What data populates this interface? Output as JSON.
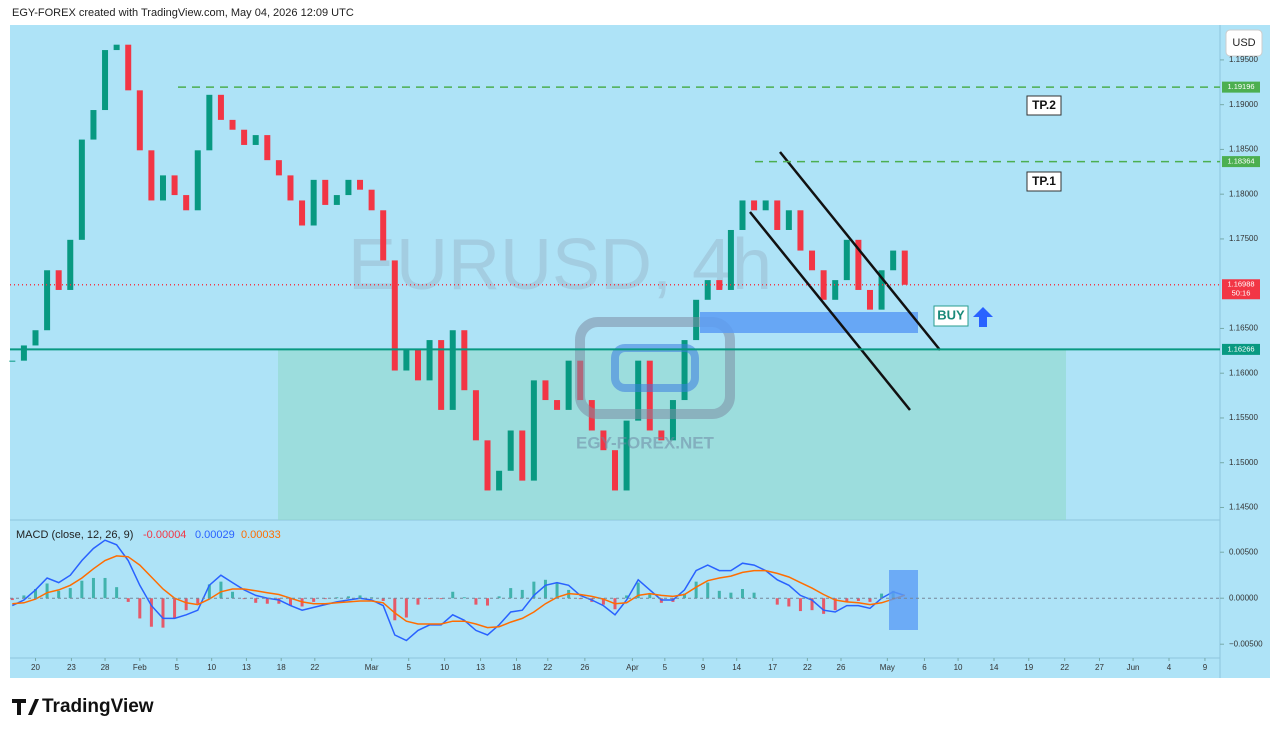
{
  "header": {
    "title": "EGY-FOREX created with TradingView.com, May 04, 2026 12:09 UTC",
    "currency": "USD",
    "watermark": "EURUSD, 4h",
    "logo": "EGY-FOREX.NET"
  },
  "annotations": {
    "tp2": "TP.2",
    "tp1": "TP.1",
    "buy": "BUY",
    "countdown": "50:16"
  },
  "footer": {
    "brand": "TradingView"
  },
  "chart_data": [
    {
      "type": "candlestick",
      "up_color": "#089981",
      "down_color": "#f23645",
      "x": [
        -2,
        -1,
        0,
        1,
        2,
        3,
        4,
        5,
        6,
        7,
        8,
        9,
        10,
        11,
        12,
        13,
        14,
        15,
        16,
        17,
        18,
        19,
        20,
        21,
        22,
        23,
        24,
        25,
        26,
        27,
        28,
        29,
        30,
        31,
        32,
        33,
        34,
        35,
        36,
        37,
        38,
        39,
        40,
        41,
        42,
        43,
        44,
        45,
        46,
        47,
        48,
        49,
        50,
        51,
        52,
        53,
        54,
        55,
        56,
        57,
        58,
        59,
        60,
        61,
        62,
        63,
        64,
        65,
        66,
        67,
        68,
        69,
        70,
        71,
        72,
        73,
        74,
        75
      ],
      "values": [
        1.1614,
        1.1631,
        1.1648,
        1.1715,
        1.1693,
        1.1749,
        1.1861,
        1.1894,
        1.1961,
        1.1967,
        1.1916,
        1.1849,
        1.1793,
        1.1821,
        1.1799,
        1.1782,
        1.1849,
        1.1911,
        1.1883,
        1.1872,
        1.1855,
        1.1866,
        1.1838,
        1.1821,
        1.1793,
        1.1765,
        1.1816,
        1.1788,
        1.1799,
        1.1816,
        1.1805,
        1.1782,
        1.1726,
        1.1603,
        1.1626,
        1.1592,
        1.1637,
        1.1559,
        1.1648,
        1.1581,
        1.1525,
        1.1469,
        1.1491,
        1.1536,
        1.148,
        1.1592,
        1.157,
        1.1559,
        1.1614,
        1.157,
        1.1536,
        1.1514,
        1.1469,
        1.1547,
        1.1614,
        1.1536,
        1.1525,
        1.157,
        1.1637,
        1.1682,
        1.1704,
        1.1693,
        1.176,
        1.1793,
        1.1782,
        1.1793,
        1.176,
        1.1782,
        1.1737,
        1.1715,
        1.1682,
        1.1704,
        1.1749,
        1.1693,
        1.1671,
        1.1715,
        1.1737,
        1.16988
      ],
      "xlim": [
        -2.2,
        102.2
      ],
      "ylim": [
        1.1436,
        1.1989
      ],
      "yticks": [
        {
          "value": 1.195,
          "label": "1.19500"
        },
        {
          "value": 1.19,
          "label": "1.19000"
        },
        {
          "value": 1.185,
          "label": "1.18500"
        },
        {
          "value": 1.18,
          "label": "1.18000"
        },
        {
          "value": 1.175,
          "label": "1.17500"
        },
        {
          "value": 1.165,
          "label": "1.16500"
        },
        {
          "value": 1.16,
          "label": "1.16000"
        },
        {
          "value": 1.155,
          "label": "1.15500"
        },
        {
          "value": 1.15,
          "label": "1.15000"
        },
        {
          "value": 1.145,
          "label": "1.14500"
        }
      ],
      "levels": [
        {
          "value": 1.19196,
          "color": "#4caf50",
          "style": "dashed"
        },
        {
          "value": 1.18364,
          "color": "#4caf50",
          "style": "dashed"
        },
        {
          "value": 1.16988,
          "color": "#f23645",
          "style": "dotted"
        },
        {
          "value": 1.16266,
          "color": "#089981",
          "style": "solid"
        }
      ]
    },
    {
      "type": "macd",
      "title": "MACD (close, 12, 26, 9)",
      "x": [
        -2,
        -1,
        0,
        1,
        2,
        3,
        4,
        5,
        6,
        7,
        8,
        9,
        10,
        11,
        12,
        13,
        14,
        15,
        16,
        17,
        18,
        19,
        20,
        21,
        22,
        23,
        24,
        25,
        26,
        27,
        28,
        29,
        30,
        31,
        32,
        33,
        34,
        35,
        36,
        37,
        38,
        39,
        40,
        41,
        42,
        43,
        44,
        45,
        46,
        47,
        48,
        49,
        50,
        51,
        52,
        53,
        54,
        55,
        56,
        57,
        58,
        59,
        60,
        61,
        62,
        63,
        64,
        65,
        66,
        67,
        68,
        69,
        70,
        71,
        72,
        73,
        74,
        75
      ],
      "series": [
        {
          "color": "#f23645",
          "values": [
            -0.0002,
            0.0003,
            0.001,
            0.0016,
            0.0008,
            0.0011,
            0.0019,
            0.0022,
            0.0022,
            0.0012,
            -0.0004,
            -0.0022,
            -0.0031,
            -0.0032,
            -0.0022,
            -0.0013,
            -0.0006,
            0.0015,
            0.0018,
            0.0007,
            -0.0001,
            -0.0005,
            -0.0006,
            -0.0006,
            -0.0008,
            -0.0009,
            -0.0004,
            -0.0001,
            0.0001,
            0.0002,
            0.0003,
            0.0001,
            -0.0003,
            -0.0024,
            -0.0021,
            -0.0007,
            -0.0001,
            -0.0001,
            0.0007,
            0.0001,
            -0.0007,
            -0.0008,
            0.0002,
            0.0011,
            0.0009,
            0.0018,
            0.002,
            0.0016,
            0.0009,
            -0.0001,
            -0.0004,
            -0.0007,
            -0.0012,
            0.0003,
            0.0017,
            0.0004,
            -0.0005,
            -0.0004,
            0.0005,
            0.0018,
            0.0017,
            0.0008,
            0.0006,
            0.001,
            0.0006,
            0,
            -0.0007,
            -0.0009,
            -0.0014,
            -0.0013,
            -0.0017,
            -0.0013,
            -0.0004,
            -0.0003,
            -0.0004,
            0.0005,
            0.0008,
            -4e-05
          ]
        },
        {
          "color": "#2962ff",
          "values": [
            -0.0008,
            -0.0002,
            0.0009,
            0.0022,
            0.0017,
            0.0025,
            0.0041,
            0.0054,
            0.0063,
            0.0058,
            0.0041,
            0.0014,
            -0.0008,
            -0.0022,
            -0.0022,
            -0.0018,
            -0.0013,
            0.0014,
            0.0025,
            0.0017,
            0.0009,
            0.0003,
            0,
            -0.0002,
            -0.0008,
            -0.0013,
            -0.001,
            -0.0007,
            -0.0004,
            -0.0002,
            0,
            -0.0002,
            -0.0008,
            -0.004,
            -0.0046,
            -0.0035,
            -0.0029,
            -0.0029,
            -0.0018,
            -0.0024,
            -0.0035,
            -0.004,
            -0.0029,
            -0.0015,
            -0.0013,
            0.0003,
            0.0014,
            0.0017,
            0.0014,
            0.0003,
            -0.0002,
            -0.0008,
            -0.0018,
            -0.0002,
            0.002,
            0.0009,
            -0.0002,
            -0.0002,
            0.0009,
            0.003,
            0.0036,
            0.003,
            0.003,
            0.0038,
            0.0036,
            0.003,
            0.002,
            0.0014,
            0.0003,
            -0.0002,
            -0.0013,
            -0.0015,
            -0.0008,
            -0.0008,
            -0.0011,
            0,
            0.0007,
            0.00029
          ]
        },
        {
          "color": "#ff6d00",
          "values": [
            -0.0006,
            -0.0005,
            -0.0001,
            0.0006,
            0.0009,
            0.0014,
            0.0022,
            0.0032,
            0.0041,
            0.0046,
            0.0045,
            0.0036,
            0.0023,
            0.001,
            0,
            -0.0005,
            -0.0007,
            -0.0001,
            0.0007,
            0.001,
            0.001,
            0.0008,
            0.0006,
            0.0004,
            0,
            -0.0004,
            -0.0006,
            -0.0006,
            -0.0005,
            -0.0004,
            -0.0003,
            -0.0003,
            -0.0005,
            -0.0016,
            -0.0025,
            -0.0028,
            -0.0028,
            -0.0028,
            -0.0025,
            -0.0025,
            -0.0028,
            -0.0032,
            -0.0031,
            -0.0026,
            -0.0022,
            -0.0015,
            -0.0006,
            0.0001,
            0.0005,
            0.0004,
            0.0002,
            -0.0001,
            -0.0006,
            -0.0005,
            0.0003,
            0.0005,
            0.0003,
            0.0002,
            0.0004,
            0.0012,
            0.0019,
            0.0022,
            0.0024,
            0.0028,
            0.003,
            0.003,
            0.0027,
            0.0023,
            0.0017,
            0.0011,
            0.0004,
            -0.0002,
            -0.0004,
            -0.0005,
            -0.0007,
            -0.0005,
            -0.0001,
            0.00033
          ]
        }
      ],
      "xlim": [
        -2.2,
        102.2
      ],
      "ylim": [
        -0.0065,
        0.0085
      ],
      "zero_line": true,
      "yticks": [
        {
          "value": 0.005,
          "label": "0.00500"
        },
        {
          "value": 0,
          "label": "0.00000"
        },
        {
          "value": -0.005,
          "label": "−0.00500"
        }
      ],
      "xticks": [
        {
          "value": 0,
          "label": "20"
        },
        {
          "value": 3.1,
          "label": "23"
        },
        {
          "value": 6,
          "label": "28"
        },
        {
          "value": 9,
          "label": "Feb"
        },
        {
          "value": 12.2,
          "label": "5"
        },
        {
          "value": 15.2,
          "label": "10"
        },
        {
          "value": 18.2,
          "label": "13"
        },
        {
          "value": 21.2,
          "label": "18"
        },
        {
          "value": 24.1,
          "label": "22"
        },
        {
          "value": 29,
          "label": "Mar"
        },
        {
          "value": 32.2,
          "label": "5"
        },
        {
          "value": 35.3,
          "label": "10"
        },
        {
          "value": 38.4,
          "label": "13"
        },
        {
          "value": 41.5,
          "label": "18"
        },
        {
          "value": 44.2,
          "label": "22"
        },
        {
          "value": 47.4,
          "label": "26"
        },
        {
          "value": 51.5,
          "label": "Apr"
        },
        {
          "value": 54.3,
          "label": "5"
        },
        {
          "value": 57.6,
          "label": "9"
        },
        {
          "value": 60.5,
          "label": "14"
        },
        {
          "value": 63.6,
          "label": "17"
        },
        {
          "value": 66.6,
          "label": "22"
        },
        {
          "value": 69.5,
          "label": "26"
        },
        {
          "value": 73.5,
          "label": "May"
        },
        {
          "value": 76.7,
          "label": "6"
        },
        {
          "value": 79.6,
          "label": "10"
        },
        {
          "value": 82.7,
          "label": "14"
        },
        {
          "value": 85.7,
          "label": "19"
        },
        {
          "value": 88.8,
          "label": "22"
        },
        {
          "value": 91.8,
          "label": "27"
        },
        {
          "value": 94.7,
          "label": "Jun"
        },
        {
          "value": 97.8,
          "label": "4"
        },
        {
          "value": 100.9,
          "label": "9"
        }
      ]
    }
  ]
}
